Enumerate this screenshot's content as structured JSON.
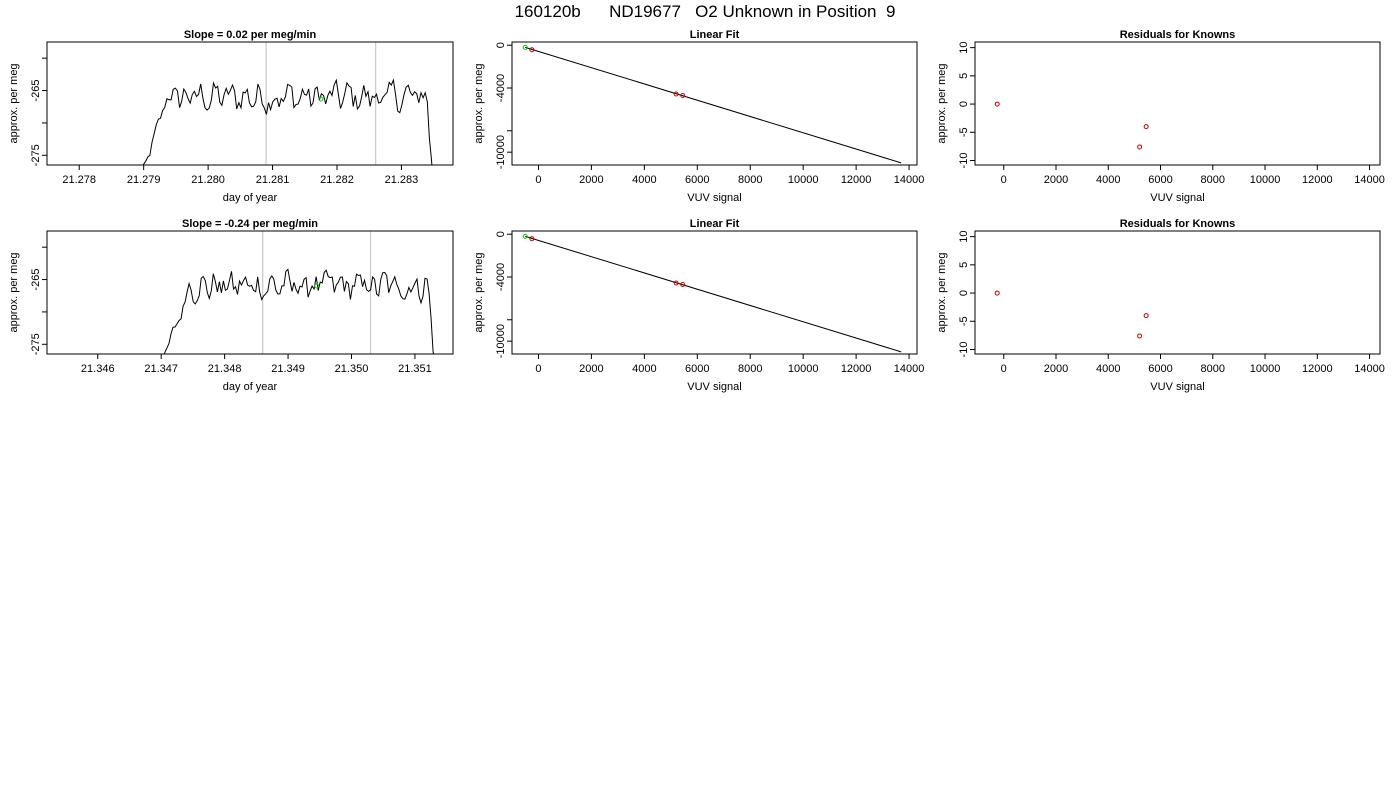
{
  "page": {
    "title": "160120b      ND19677   O2 Unknown in Position  9"
  },
  "colors": {
    "line": "#000000",
    "frame": "#000000",
    "marker_known": "#cc0000",
    "marker_unknown": "#00cc00",
    "vline": "#c8c8c8"
  },
  "chart_data": [
    {
      "type": "line",
      "title": "Slope =  0.02  per meg/min",
      "xlabel": "day of year",
      "ylabel": "approx. per meg",
      "xlim": [
        21.2775,
        21.2838
      ],
      "ylim": [
        -276.5,
        -257.5
      ],
      "xticks": [
        21.278,
        21.279,
        21.28,
        21.281,
        21.282,
        21.283
      ],
      "xtick_labels": [
        "21.278",
        "21.279",
        "21.280",
        "21.281",
        "21.282",
        "21.283"
      ],
      "yticks": [
        -275,
        -270,
        -265,
        -260
      ],
      "ytick_labels": [
        "-275",
        "",
        "-265",
        ""
      ],
      "vlines": [
        21.2809,
        21.2826
      ],
      "trace": {
        "start": 21.2789,
        "end": 21.2835,
        "plateau": -266.0,
        "rise_end": 21.2793,
        "fall_start": 21.2834
      },
      "marker_unknown": {
        "x": 21.28175,
        "y": -266.3
      },
      "grid": false
    },
    {
      "type": "scatter",
      "title": "Linear Fit",
      "xlabel": "VUV signal",
      "ylabel": "approx. per meg",
      "xlim": [
        -1000,
        14300
      ],
      "ylim": [
        -11200,
        300
      ],
      "xticks": [
        0,
        2000,
        4000,
        6000,
        8000,
        10000,
        12000,
        14000
      ],
      "xtick_labels": [
        "0",
        "2000",
        "4000",
        "6000",
        "8000",
        "10000",
        "12000",
        "14000"
      ],
      "yticks": [
        0,
        -4000,
        -8000,
        -10000
      ],
      "ytick_labels": [
        "0",
        "-4000",
        "",
        "-10000"
      ],
      "fit_line": {
        "x": [
          -500,
          13700
        ],
        "y": [
          -200,
          -11000
        ]
      },
      "points_known": [
        {
          "x": -250,
          "y": -420
        },
        {
          "x": 5200,
          "y": -4560
        },
        {
          "x": 5450,
          "y": -4700
        }
      ],
      "points_unknown": [
        {
          "x": -500,
          "y": -200
        }
      ],
      "grid": false
    },
    {
      "type": "scatter",
      "title": "Residuals for Knowns",
      "xlabel": "VUV signal",
      "ylabel": "approx. per meg",
      "xlim": [
        -1100,
        14400
      ],
      "ylim": [
        -10.8,
        11
      ],
      "xticks": [
        0,
        2000,
        4000,
        6000,
        8000,
        10000,
        12000,
        14000
      ],
      "xtick_labels": [
        "0",
        "2000",
        "4000",
        "6000",
        "8000",
        "10000",
        "12000",
        "14000"
      ],
      "yticks": [
        10,
        5,
        0,
        -5,
        -10
      ],
      "ytick_labels": [
        "10",
        "5",
        "0",
        "-5",
        "-10"
      ],
      "points_known": [
        {
          "x": -250,
          "y": 0.0
        },
        {
          "x": 5200,
          "y": -7.6
        },
        {
          "x": 5450,
          "y": -4.0
        }
      ],
      "grid": false
    },
    {
      "type": "line",
      "title": "Slope =  -0.24  per meg/min",
      "xlabel": "day of year",
      "ylabel": "approx. per meg",
      "xlim": [
        21.3452,
        21.3516
      ],
      "ylim": [
        -276.5,
        -257.5
      ],
      "xticks": [
        21.346,
        21.347,
        21.348,
        21.349,
        21.35,
        21.351
      ],
      "xtick_labels": [
        "21.346",
        "21.347",
        "21.348",
        "21.349",
        "21.350",
        "21.351"
      ],
      "yticks": [
        -275,
        -270,
        -265,
        -260
      ],
      "ytick_labels": [
        "-275",
        "",
        "-265",
        ""
      ],
      "vlines": [
        21.3486,
        21.3503
      ],
      "trace": {
        "start": 21.3469,
        "end": 21.35135,
        "plateau": -266.0,
        "rise_end": 21.3474,
        "fall_start": 21.3512
      },
      "marker_unknown": {
        "x": 21.34945,
        "y": -266.0
      },
      "grid": false
    },
    {
      "type": "scatter",
      "title": "Linear Fit",
      "xlabel": "VUV signal",
      "ylabel": "approx. per meg",
      "xlim": [
        -1000,
        14300
      ],
      "ylim": [
        -11200,
        300
      ],
      "xticks": [
        0,
        2000,
        4000,
        6000,
        8000,
        10000,
        12000,
        14000
      ],
      "xtick_labels": [
        "0",
        "2000",
        "4000",
        "6000",
        "8000",
        "10000",
        "12000",
        "14000"
      ],
      "yticks": [
        0,
        -4000,
        -8000,
        -10000
      ],
      "ytick_labels": [
        "0",
        "-4000",
        "",
        "-10000"
      ],
      "fit_line": {
        "x": [
          -500,
          13700
        ],
        "y": [
          -200,
          -11000
        ]
      },
      "points_known": [
        {
          "x": -250,
          "y": -420
        },
        {
          "x": 5200,
          "y": -4560
        },
        {
          "x": 5450,
          "y": -4700
        }
      ],
      "points_unknown": [
        {
          "x": -500,
          "y": -200
        }
      ],
      "grid": false
    },
    {
      "type": "scatter",
      "title": "Residuals for Knowns",
      "xlabel": "VUV signal",
      "ylabel": "approx. per meg",
      "xlim": [
        -1100,
        14400
      ],
      "ylim": [
        -10.8,
        11
      ],
      "xticks": [
        0,
        2000,
        4000,
        6000,
        8000,
        10000,
        12000,
        14000
      ],
      "xtick_labels": [
        "0",
        "2000",
        "4000",
        "6000",
        "8000",
        "10000",
        "12000",
        "14000"
      ],
      "yticks": [
        10,
        5,
        0,
        -5,
        -10
      ],
      "ytick_labels": [
        "10",
        "5",
        "0",
        "-5",
        "-10"
      ],
      "points_known": [
        {
          "x": -250,
          "y": 0.0
        },
        {
          "x": 5200,
          "y": -7.6
        },
        {
          "x": 5450,
          "y": -4.0
        }
      ],
      "grid": false
    }
  ]
}
